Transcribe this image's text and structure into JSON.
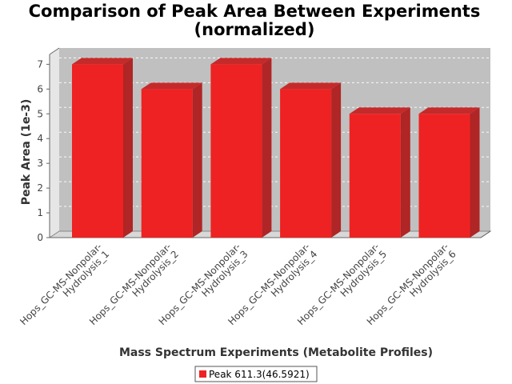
{
  "chart_data": {
    "type": "bar",
    "title": "Comparison of Peak Area Between Experiments",
    "subtitle": "(normalized)",
    "xlabel": "Mass Spectrum Experiments (Metabolite Profiles)",
    "ylabel": "Peak Area (1e-3)",
    "categories": [
      "Hops_GC-MS-Nonpolar-Hydrolysis_1",
      "Hops_GC-MS-Nonpolar-Hydrolysis_2",
      "Hops_GC-MS-Nonpolar-Hydrolysis_3",
      "Hops_GC-MS-Nonpolar-Hydrolysis_4",
      "Hops_GC-MS-Nonpolar-Hydrolysis_5",
      "Hops_GC-MS-Nonpolar-Hydrolysis_6"
    ],
    "category_lines": [
      [
        "Hops_GC-MS-Nonpolar-",
        "Hydrolysis_1"
      ],
      [
        "Hops_GC-MS-Nonpolar-",
        "Hydrolysis_2"
      ],
      [
        "Hops_GC-MS-Nonpolar-",
        "Hydrolysis_3"
      ],
      [
        "Hops_GC-MS-Nonpolar-",
        "Hydrolysis_4"
      ],
      [
        "Hops_GC-MS-Nonpolar-",
        "Hydrolysis_5"
      ],
      [
        "Hops_GC-MS-Nonpolar-",
        "Hydrolysis_6"
      ]
    ],
    "series": [
      {
        "name": "Peak 611.3(46.5921)",
        "values": [
          7,
          6,
          7,
          6,
          5,
          5
        ],
        "color": "#ee2222"
      }
    ],
    "yticks": [
      "0",
      "1",
      "2",
      "3",
      "4",
      "5",
      "6",
      "7"
    ],
    "ylim": [
      0,
      7.4
    ],
    "grid": true,
    "legend_position": "bottom",
    "plot_background": "#c0c0c0"
  }
}
